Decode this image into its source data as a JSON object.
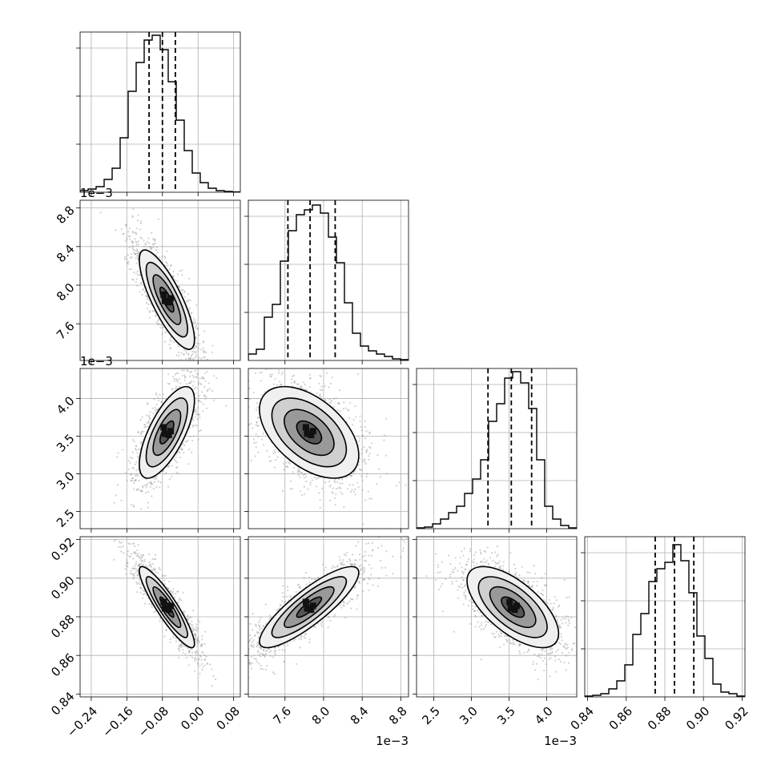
{
  "chart_data": {
    "type": "corner",
    "variables": [
      {
        "range": [
          -0.265,
          0.095
        ],
        "ticks": [
          -0.24,
          -0.16,
          -0.08,
          0.0,
          0.08
        ],
        "tick_labels": [
          "−0.24",
          "−0.16",
          "−0.08",
          "0.00",
          "0.08"
        ],
        "offset_text": "",
        "quantiles": [
          -0.11,
          -0.08,
          -0.051
        ],
        "hist": [
          0.01,
          0.02,
          0.035,
          0.08,
          0.15,
          0.34,
          0.63,
          0.81,
          0.95,
          0.98,
          0.89,
          0.69,
          0.45,
          0.26,
          0.12,
          0.06,
          0.025,
          0.01,
          0.005,
          0.002
        ],
        "mode": -0.07
      },
      {
        "range": [
          7.22,
          8.88
        ],
        "ticks": [
          7.6,
          8.0,
          8.4,
          8.8
        ],
        "tick_labels": [
          "7.6",
          "8.0",
          "8.4",
          "8.8"
        ],
        "offset_text": "1e−3",
        "quantiles": [
          7.63,
          7.86,
          8.12
        ],
        "hist": [
          0.04,
          0.07,
          0.27,
          0.35,
          0.62,
          0.81,
          0.91,
          0.94,
          0.97,
          0.92,
          0.77,
          0.61,
          0.36,
          0.17,
          0.09,
          0.06,
          0.04,
          0.025,
          0.01,
          0.005
        ],
        "mode": 7.85
      },
      {
        "range": [
          2.27,
          4.4
        ],
        "ticks": [
          2.5,
          3.0,
          3.5,
          4.0
        ],
        "tick_labels": [
          "2.5",
          "3.0",
          "3.5",
          "4.0"
        ],
        "offset_text": "1e−3",
        "quantiles": [
          3.22,
          3.53,
          3.8
        ],
        "hist": [
          0.005,
          0.01,
          0.03,
          0.06,
          0.1,
          0.14,
          0.22,
          0.31,
          0.43,
          0.67,
          0.78,
          0.94,
          0.98,
          0.91,
          0.75,
          0.43,
          0.14,
          0.06,
          0.02,
          0.005
        ],
        "mode": 3.55
      },
      {
        "range": [
          0.8385,
          0.9215
        ],
        "ticks": [
          0.84,
          0.86,
          0.88,
          0.9,
          0.92
        ],
        "tick_labels": [
          "0.84",
          "0.86",
          "0.88",
          "0.90",
          "0.92"
        ],
        "offset_text": "",
        "quantiles": [
          0.875,
          0.885,
          0.895
        ],
        "hist": [
          0.005,
          0.01,
          0.02,
          0.05,
          0.1,
          0.2,
          0.39,
          0.52,
          0.72,
          0.8,
          0.84,
          0.95,
          0.85,
          0.65,
          0.38,
          0.24,
          0.08,
          0.03,
          0.02,
          0.005
        ],
        "mode": 0.885
      }
    ],
    "correlations": [
      [
        1.0,
        -0.8,
        0.7,
        -0.9
      ],
      [
        -0.8,
        1.0,
        -0.5,
        0.85
      ],
      [
        0.7,
        -0.5,
        1.0,
        -0.65
      ],
      [
        -0.9,
        0.85,
        -0.65,
        1.0
      ]
    ],
    "contour_levels_sigma": [
      0.5,
      1.0,
      1.5,
      2.0
    ],
    "quantile_style": "dashed",
    "grid": true
  }
}
